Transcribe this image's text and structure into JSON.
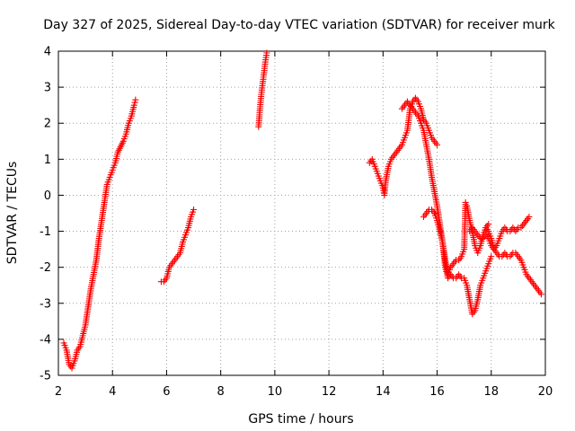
{
  "chart_data": {
    "type": "scatter",
    "title": "Day 327 of 2025, Sidereal Day-to-day VTEC variation (SDTVAR) for receiver murk",
    "xlabel": "GPS time / hours",
    "ylabel": "SDTVAR / TECUs",
    "xlim": [
      2,
      20
    ],
    "ylim": [
      -5,
      4
    ],
    "xticks": [
      "2",
      "4",
      "6",
      "8",
      "10",
      "12",
      "14",
      "16",
      "18",
      "20"
    ],
    "yticks": [
      "4",
      "3",
      "2",
      "1",
      "0",
      "-1",
      "-2",
      "-3",
      "-4",
      "-5"
    ],
    "grid": true,
    "marker": "+",
    "color": "#ff0000",
    "series": [
      {
        "name": "segment-1",
        "x": [
          2.2,
          2.3,
          2.4,
          2.5,
          2.6,
          2.7,
          2.8,
          2.9,
          3.0,
          3.1,
          3.2,
          3.3,
          3.4,
          3.5,
          3.6,
          3.7,
          3.8,
          3.9,
          4.0,
          4.1,
          4.2,
          4.3,
          4.4,
          4.5,
          4.6,
          4.7,
          4.8,
          4.85
        ],
        "y": [
          -4.1,
          -4.3,
          -4.7,
          -4.8,
          -4.6,
          -4.3,
          -4.2,
          -3.9,
          -3.6,
          -3.1,
          -2.6,
          -2.2,
          -1.8,
          -1.2,
          -0.7,
          -0.2,
          0.3,
          0.5,
          0.7,
          0.9,
          1.2,
          1.35,
          1.5,
          1.7,
          2.0,
          2.2,
          2.5,
          2.65
        ]
      },
      {
        "name": "segment-2",
        "x": [
          5.8,
          5.9,
          6.0,
          6.1,
          6.2,
          6.3,
          6.4,
          6.5,
          6.6,
          6.7,
          6.8,
          6.9,
          7.0
        ],
        "y": [
          -2.4,
          -2.4,
          -2.3,
          -2.0,
          -1.9,
          -1.8,
          -1.7,
          -1.6,
          -1.3,
          -1.1,
          -0.9,
          -0.6,
          -0.4
        ]
      },
      {
        "name": "segment-3",
        "x": [
          9.4,
          9.45,
          9.5,
          9.55,
          9.6,
          9.65,
          9.7
        ],
        "y": [
          1.9,
          2.4,
          2.8,
          3.1,
          3.4,
          3.7,
          3.95
        ]
      },
      {
        "name": "segment-4a",
        "x": [
          13.5,
          13.6,
          13.7,
          13.8,
          13.9,
          14.0,
          14.05,
          14.1,
          14.2,
          14.3,
          14.4,
          14.5,
          14.6,
          14.7,
          14.8,
          14.9,
          15.0,
          15.1,
          15.2,
          15.3,
          15.4,
          15.5,
          15.6,
          15.7,
          15.8,
          15.9,
          16.0
        ],
        "y": [
          0.9,
          1.0,
          0.8,
          0.6,
          0.4,
          0.2,
          0.0,
          0.4,
          0.8,
          1.0,
          1.1,
          1.2,
          1.3,
          1.4,
          1.6,
          1.8,
          2.4,
          2.6,
          2.7,
          2.6,
          2.4,
          2.1,
          2.0,
          1.8,
          1.6,
          1.5,
          1.4
        ]
      },
      {
        "name": "segment-4b",
        "x": [
          14.7,
          14.8,
          14.9,
          15.0,
          15.1,
          15.2,
          15.3,
          15.4,
          15.5,
          15.6,
          15.7,
          15.8,
          15.9,
          16.0,
          16.1,
          16.2,
          16.3,
          16.4,
          16.5,
          16.6,
          16.7,
          16.8,
          16.9,
          17.0,
          17.1,
          17.2,
          17.3,
          17.4,
          17.5,
          17.6,
          17.7,
          17.8,
          17.9,
          18.0
        ],
        "y": [
          2.4,
          2.5,
          2.6,
          2.5,
          2.4,
          2.3,
          2.2,
          2.0,
          1.8,
          1.4,
          1.0,
          0.5,
          0.1,
          -0.3,
          -0.8,
          -1.3,
          -2.0,
          -2.3,
          -2.2,
          -2.3,
          -2.3,
          -2.2,
          -2.3,
          -2.3,
          -2.5,
          -2.9,
          -3.3,
          -3.2,
          -2.9,
          -2.5,
          -2.3,
          -2.1,
          -1.9,
          -1.7
        ]
      },
      {
        "name": "segment-4c",
        "x": [
          15.5,
          15.6,
          15.7,
          15.8,
          15.9,
          16.0,
          16.1,
          16.2,
          16.3,
          16.4,
          16.5,
          16.6,
          16.7,
          16.8,
          16.9,
          17.0,
          17.05,
          17.1,
          17.2,
          17.3,
          17.4,
          17.5,
          17.6,
          17.7,
          17.8,
          17.9
        ],
        "y": [
          -0.6,
          -0.5,
          -0.4,
          -0.4,
          -0.5,
          -0.7,
          -1.0,
          -1.3,
          -1.8,
          -2.2,
          -2.0,
          -1.9,
          -1.8,
          -1.8,
          -1.7,
          -1.5,
          -0.2,
          -0.3,
          -0.7,
          -1.0,
          -1.4,
          -1.6,
          -1.4,
          -1.1,
          -0.9,
          -0.8
        ]
      },
      {
        "name": "segment-4d",
        "x": [
          17.2,
          17.3,
          17.4,
          17.5,
          17.6,
          17.7,
          17.8,
          17.9,
          18.0,
          18.1,
          18.2,
          18.3,
          18.4,
          18.5,
          18.6,
          18.7,
          18.8,
          18.9,
          19.0,
          19.1,
          19.2,
          19.3,
          19.4
        ],
        "y": [
          -1.0,
          -0.9,
          -1.0,
          -1.1,
          -1.2,
          -1.2,
          -1.1,
          -1.2,
          -1.4,
          -1.5,
          -1.4,
          -1.2,
          -1.0,
          -0.9,
          -1.0,
          -1.0,
          -0.9,
          -1.0,
          -0.9,
          -0.9,
          -0.8,
          -0.7,
          -0.6
        ]
      },
      {
        "name": "segment-4e",
        "x": [
          17.8,
          17.9,
          18.0,
          18.1,
          18.2,
          18.3,
          18.4,
          18.5,
          18.6,
          18.7,
          18.8,
          18.9,
          19.0,
          19.1,
          19.2,
          19.3,
          19.4,
          19.5,
          19.6,
          19.7,
          19.8,
          19.85
        ],
        "y": [
          -0.9,
          -1.0,
          -1.2,
          -1.5,
          -1.6,
          -1.7,
          -1.7,
          -1.6,
          -1.7,
          -1.7,
          -1.6,
          -1.6,
          -1.7,
          -1.8,
          -2.0,
          -2.2,
          -2.3,
          -2.4,
          -2.5,
          -2.6,
          -2.7,
          -2.75
        ]
      }
    ]
  }
}
